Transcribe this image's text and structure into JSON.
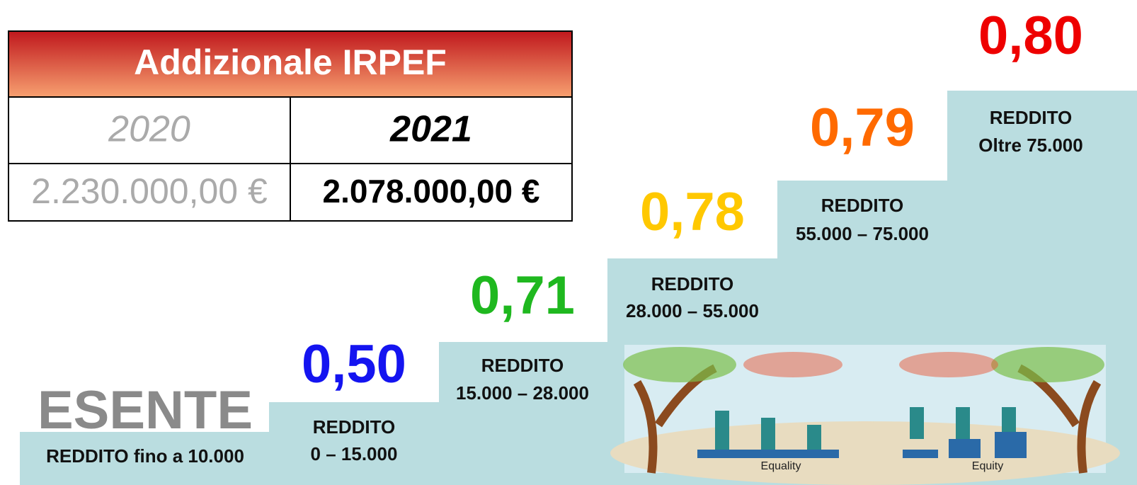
{
  "table": {
    "title": "Addizionale IRPEF",
    "header": [
      "2020",
      "2021"
    ],
    "row": [
      "2.230.000,00 €",
      "2.078.000,00 €"
    ]
  },
  "steps": [
    {
      "rate": "ESENTE",
      "label": [
        "REDDITO fino a 10.000"
      ]
    },
    {
      "rate": "0,50",
      "label": [
        "REDDITO",
        "0 – 15.000"
      ]
    },
    {
      "rate": "0,71",
      "label": [
        "REDDITO",
        "15.000 – 28.000"
      ]
    },
    {
      "rate": "0,78",
      "label": [
        "REDDITO",
        "28.000 – 55.000"
      ]
    },
    {
      "rate": "0,79",
      "label": [
        "REDDITO",
        "55.000 – 75.000"
      ]
    },
    {
      "rate": "0,80",
      "label": [
        "REDDITO",
        "Oltre 75.000"
      ]
    }
  ],
  "illustration": {
    "labels": [
      "Equality",
      "Equity"
    ]
  }
}
